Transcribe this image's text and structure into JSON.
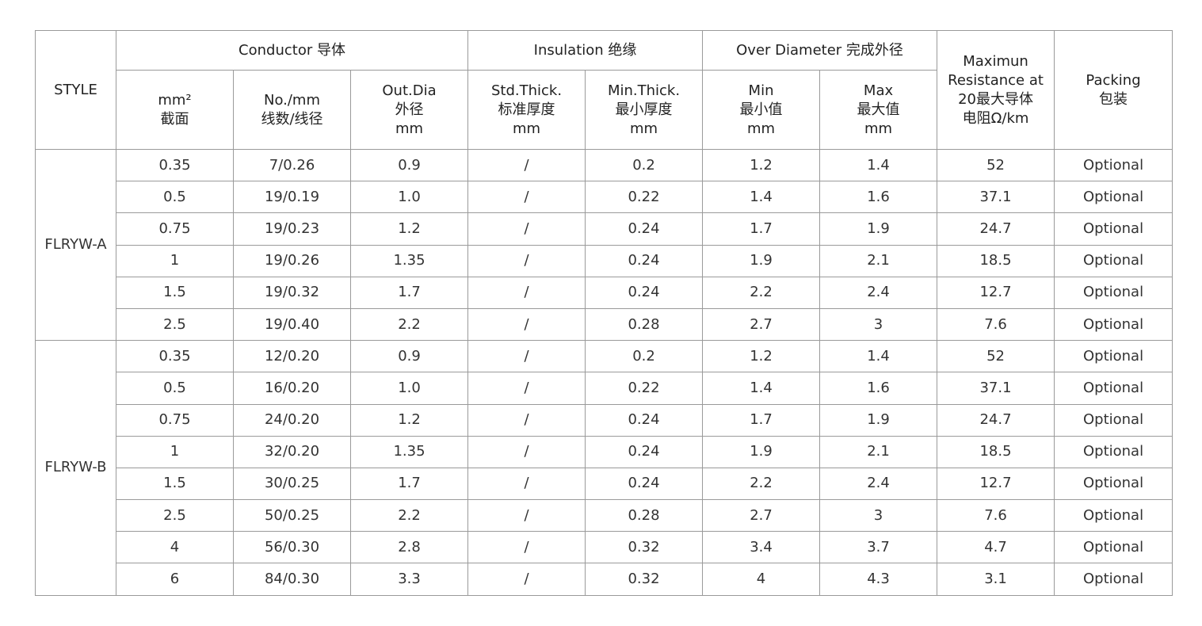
{
  "header": {
    "style": "STYLE",
    "conductor": "Conductor 导体",
    "insulation": "Insulation 绝缘",
    "over_diameter": "Over Diameter 完成外径",
    "resistance": "Maximun\nResistance at\n20最大导体\n电阻Ω/km",
    "packing": "Packing\n包装",
    "area": "mm²\n截面",
    "strands": "No./mm\n线数/线径",
    "out_dia": "Out.Dia\n外径\nmm",
    "std_thick": "Std.Thick.\n标准厚度\nmm",
    "min_thick": "Min.Thick.\n最小厚度\nmm",
    "od_min": "Min\n最小值\nmm",
    "od_max": "Max\n最大值\nmm"
  },
  "groups": [
    {
      "style": "FLRYW-A",
      "rows": [
        [
          "0.35",
          "7/0.26",
          "0.9",
          "/",
          "0.2",
          "1.2",
          "1.4",
          "52",
          "Optional"
        ],
        [
          "0.5",
          "19/0.19",
          "1.0",
          "/",
          "0.22",
          "1.4",
          "1.6",
          "37.1",
          "Optional"
        ],
        [
          "0.75",
          "19/0.23",
          "1.2",
          "/",
          "0.24",
          "1.7",
          "1.9",
          "24.7",
          "Optional"
        ],
        [
          "1",
          "19/0.26",
          "1.35",
          "/",
          "0.24",
          "1.9",
          "2.1",
          "18.5",
          "Optional"
        ],
        [
          "1.5",
          "19/0.32",
          "1.7",
          "/",
          "0.24",
          "2.2",
          "2.4",
          "12.7",
          "Optional"
        ],
        [
          "2.5",
          "19/0.40",
          "2.2",
          "/",
          "0.28",
          "2.7",
          "3",
          "7.6",
          "Optional"
        ]
      ]
    },
    {
      "style": "FLRYW-B",
      "rows": [
        [
          "0.35",
          "12/0.20",
          "0.9",
          "/",
          "0.2",
          "1.2",
          "1.4",
          "52",
          "Optional"
        ],
        [
          "0.5",
          "16/0.20",
          "1.0",
          "/",
          "0.22",
          "1.4",
          "1.6",
          "37.1",
          "Optional"
        ],
        [
          "0.75",
          "24/0.20",
          "1.2",
          "/",
          "0.24",
          "1.7",
          "1.9",
          "24.7",
          "Optional"
        ],
        [
          "1",
          "32/0.20",
          "1.35",
          "/",
          "0.24",
          "1.9",
          "2.1",
          "18.5",
          "Optional"
        ],
        [
          "1.5",
          "30/0.25",
          "1.7",
          "/",
          "0.24",
          "2.2",
          "2.4",
          "12.7",
          "Optional"
        ],
        [
          "2.5",
          "50/0.25",
          "2.2",
          "/",
          "0.28",
          "2.7",
          "3",
          "7.6",
          "Optional"
        ],
        [
          "4",
          "56/0.30",
          "2.8",
          "/",
          "0.32",
          "3.4",
          "3.7",
          "4.7",
          "Optional"
        ],
        [
          "6",
          "84/0.30",
          "3.3",
          "/",
          "0.32",
          "4",
          "4.3",
          "3.1",
          "Optional"
        ]
      ]
    }
  ]
}
